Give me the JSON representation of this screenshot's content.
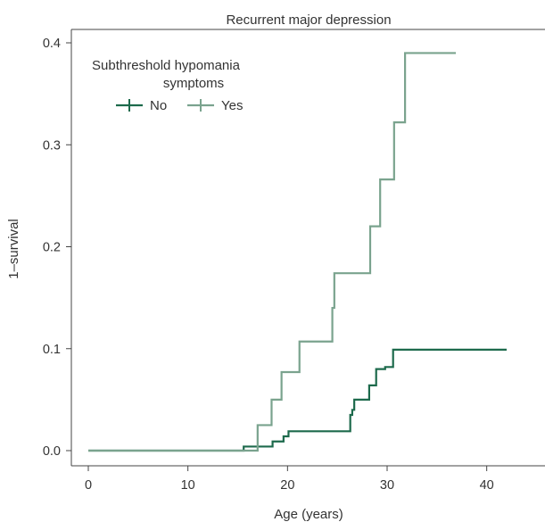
{
  "chart_data": {
    "type": "line",
    "title": "Recurrent major depression",
    "xlabel": "Age (years)",
    "ylabel": "1–survival",
    "xlim": [
      0,
      42
    ],
    "ylim": [
      0,
      0.4
    ],
    "xticks": [
      0,
      10,
      20,
      30,
      40
    ],
    "xtick_labels": [
      "0",
      "10",
      "20",
      "30",
      "40"
    ],
    "yticks": [
      0.0,
      0.1,
      0.2,
      0.3,
      0.4
    ],
    "ytick_labels": [
      "0.0",
      "0.1",
      "0.2",
      "0.3",
      "0.4"
    ],
    "grid": false,
    "step": true,
    "legend": {
      "title_line1": "Subthreshold hypomania",
      "title_line2": "symptoms",
      "placement": "top-left"
    },
    "series": [
      {
        "name": "No",
        "color": "#1d6a4c",
        "points": [
          [
            0,
            0
          ],
          [
            15.6,
            0
          ],
          [
            15.6,
            0.004
          ],
          [
            18.5,
            0.004
          ],
          [
            18.5,
            0.009
          ],
          [
            19.6,
            0.009
          ],
          [
            19.6,
            0.014
          ],
          [
            20.1,
            0.014
          ],
          [
            20.1,
            0.019
          ],
          [
            26.3,
            0.019
          ],
          [
            26.3,
            0.035
          ],
          [
            26.5,
            0.035
          ],
          [
            26.5,
            0.04
          ],
          [
            26.7,
            0.04
          ],
          [
            26.7,
            0.05
          ],
          [
            28.2,
            0.05
          ],
          [
            28.2,
            0.064
          ],
          [
            28.9,
            0.064
          ],
          [
            28.9,
            0.08
          ],
          [
            29.8,
            0.08
          ],
          [
            29.8,
            0.082
          ],
          [
            30.6,
            0.082
          ],
          [
            30.6,
            0.099
          ],
          [
            42,
            0.099
          ]
        ]
      },
      {
        "name": "Yes",
        "color": "#7aa38e",
        "points": [
          [
            0,
            0
          ],
          [
            17.0,
            0
          ],
          [
            17.0,
            0.025
          ],
          [
            18.4,
            0.025
          ],
          [
            18.4,
            0.05
          ],
          [
            19.4,
            0.05
          ],
          [
            19.4,
            0.077
          ],
          [
            21.2,
            0.077
          ],
          [
            21.2,
            0.107
          ],
          [
            24.5,
            0.107
          ],
          [
            24.5,
            0.14
          ],
          [
            24.7,
            0.14
          ],
          [
            24.7,
            0.174
          ],
          [
            28.3,
            0.174
          ],
          [
            28.3,
            0.22
          ],
          [
            29.3,
            0.22
          ],
          [
            29.3,
            0.266
          ],
          [
            30.7,
            0.266
          ],
          [
            30.7,
            0.322
          ],
          [
            31.8,
            0.322
          ],
          [
            31.8,
            0.39
          ],
          [
            36.9,
            0.39
          ]
        ]
      }
    ]
  }
}
